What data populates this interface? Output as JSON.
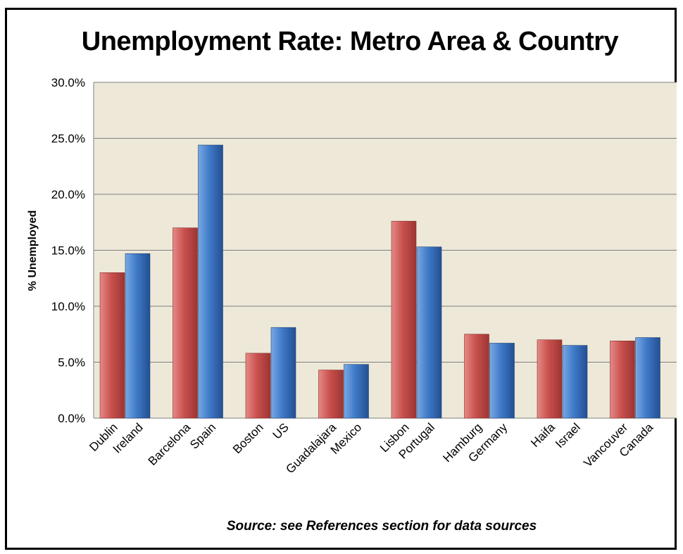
{
  "colors": {
    "background": "#ede8d8",
    "gridline": "#7f7f7f",
    "metro": "#c0504d",
    "country": "#4f81bd"
  },
  "chart_data": {
    "type": "bar",
    "title": "Unemployment Rate: Metro Area & Country",
    "ylabel": "% Unemployed",
    "xlabel": "",
    "ylim": [
      0,
      0.3
    ],
    "yticks": [
      0.0,
      0.05,
      0.1,
      0.15,
      0.2,
      0.25,
      0.3
    ],
    "ytick_labels": [
      "0.0%",
      "5.0%",
      "10.0%",
      "15.0%",
      "20.0%",
      "25.0%",
      "30.0%"
    ],
    "grid": true,
    "source_note": "Source: see References section for data sources",
    "groups": [
      {
        "bars": [
          {
            "label": "Dublin",
            "value": 0.13,
            "kind": "metro"
          },
          {
            "label": "Ireland",
            "value": 0.147,
            "kind": "country"
          }
        ]
      },
      {
        "bars": [
          {
            "label": "Barcelona",
            "value": 0.17,
            "kind": "metro"
          },
          {
            "label": "Spain",
            "value": 0.244,
            "kind": "country"
          }
        ]
      },
      {
        "bars": [
          {
            "label": "Boston",
            "value": 0.058,
            "kind": "metro"
          },
          {
            "label": "US",
            "value": 0.081,
            "kind": "country"
          }
        ]
      },
      {
        "bars": [
          {
            "label": "Guadalajara",
            "value": 0.043,
            "kind": "metro"
          },
          {
            "label": "Mexico",
            "value": 0.048,
            "kind": "country"
          }
        ]
      },
      {
        "bars": [
          {
            "label": "Lisbon",
            "value": 0.176,
            "kind": "metro"
          },
          {
            "label": "Portugal",
            "value": 0.153,
            "kind": "country"
          }
        ]
      },
      {
        "bars": [
          {
            "label": "Hamburg",
            "value": 0.075,
            "kind": "metro"
          },
          {
            "label": "Germany",
            "value": 0.067,
            "kind": "country"
          }
        ]
      },
      {
        "bars": [
          {
            "label": "Haifa",
            "value": 0.07,
            "kind": "metro"
          },
          {
            "label": "Israel",
            "value": 0.065,
            "kind": "country"
          }
        ]
      },
      {
        "bars": [
          {
            "label": "Vancouver",
            "value": 0.069,
            "kind": "metro"
          },
          {
            "label": "Canada",
            "value": 0.072,
            "kind": "country"
          }
        ]
      }
    ]
  }
}
